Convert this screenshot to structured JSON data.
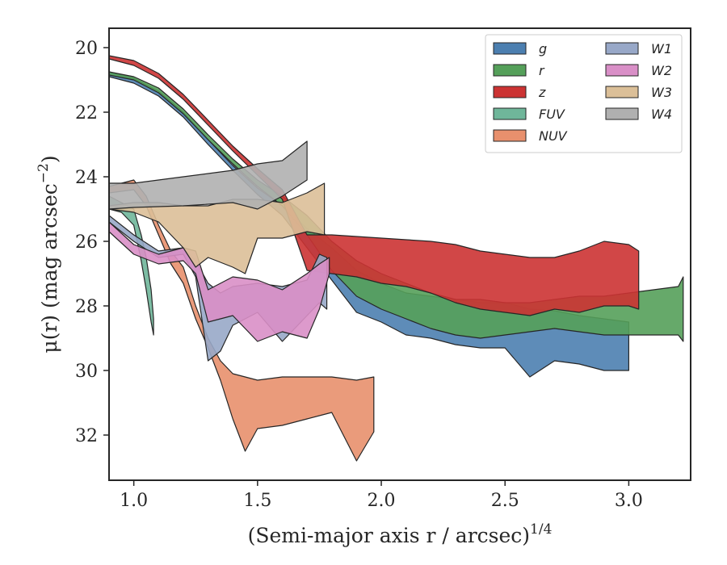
{
  "chart_data": {
    "type": "area",
    "xlabel": "(Semi-major axis r / arcsec)",
    "xlabel_exponent": "1/4",
    "ylabel": "μ(r) (mag arcsec",
    "ylabel_exponent": "−2",
    "ylabel_close": ")",
    "xlim": [
      0.9,
      3.25
    ],
    "ylim": [
      33.4,
      19.4
    ],
    "y_inverted": true,
    "x_ticks": [
      1.0,
      1.5,
      2.0,
      2.5,
      3.0
    ],
    "x_tick_labels": [
      "1.0",
      "1.5",
      "2.0",
      "2.5",
      "3.0"
    ],
    "y_ticks": [
      20,
      22,
      24,
      26,
      28,
      30,
      32
    ],
    "y_tick_labels": [
      "20",
      "22",
      "24",
      "26",
      "28",
      "30",
      "32"
    ],
    "grid": false,
    "legend_position": "top-right",
    "legend_columns": 2,
    "series": [
      {
        "name": "g",
        "legend_label": "g",
        "color": "#4c7fb0",
        "upper": [
          [
            0.9,
            20.75
          ],
          [
            1.0,
            20.95
          ],
          [
            1.1,
            21.35
          ],
          [
            1.2,
            22.0
          ],
          [
            1.3,
            22.85
          ],
          [
            1.4,
            23.65
          ],
          [
            1.5,
            24.35
          ],
          [
            1.6,
            24.9
          ],
          [
            1.7,
            25.6
          ],
          [
            1.8,
            26.2
          ],
          [
            1.9,
            26.9
          ],
          [
            2.0,
            27.3
          ],
          [
            2.1,
            27.6
          ],
          [
            2.2,
            27.7
          ],
          [
            2.3,
            27.8
          ],
          [
            2.4,
            27.9
          ],
          [
            2.5,
            27.9
          ],
          [
            2.6,
            28.1
          ],
          [
            2.7,
            28.15
          ],
          [
            2.8,
            28.3
          ],
          [
            2.9,
            28.4
          ],
          [
            3.0,
            28.5
          ]
        ],
        "lower": [
          [
            0.9,
            20.9
          ],
          [
            1.0,
            21.1
          ],
          [
            1.1,
            21.5
          ],
          [
            1.2,
            22.15
          ],
          [
            1.3,
            23.0
          ],
          [
            1.4,
            23.8
          ],
          [
            1.5,
            24.55
          ],
          [
            1.6,
            25.2
          ],
          [
            1.7,
            26.2
          ],
          [
            1.8,
            27.2
          ],
          [
            1.9,
            28.2
          ],
          [
            2.0,
            28.5
          ],
          [
            2.1,
            28.9
          ],
          [
            2.2,
            29.0
          ],
          [
            2.3,
            29.2
          ],
          [
            2.4,
            29.3
          ],
          [
            2.5,
            29.3
          ],
          [
            2.6,
            30.2
          ],
          [
            2.7,
            29.7
          ],
          [
            2.8,
            29.8
          ],
          [
            2.9,
            30.0
          ],
          [
            3.0,
            30.0
          ]
        ]
      },
      {
        "name": "r",
        "legend_label": "r",
        "color": "#55a05a",
        "upper": [
          [
            0.9,
            20.75
          ],
          [
            1.0,
            20.9
          ],
          [
            1.1,
            21.25
          ],
          [
            1.2,
            21.9
          ],
          [
            1.3,
            22.7
          ],
          [
            1.4,
            23.45
          ],
          [
            1.5,
            24.1
          ],
          [
            1.6,
            24.6
          ],
          [
            1.7,
            25.2
          ],
          [
            1.8,
            26.0
          ],
          [
            1.9,
            26.6
          ],
          [
            2.0,
            27.0
          ],
          [
            2.1,
            27.3
          ],
          [
            2.2,
            27.6
          ],
          [
            2.3,
            27.8
          ],
          [
            2.4,
            27.8
          ],
          [
            2.5,
            27.9
          ],
          [
            2.6,
            27.9
          ],
          [
            2.7,
            27.8
          ],
          [
            2.8,
            27.7
          ],
          [
            2.9,
            27.7
          ],
          [
            3.0,
            27.6
          ],
          [
            3.1,
            27.5
          ],
          [
            3.2,
            27.4
          ],
          [
            3.22,
            27.1
          ]
        ],
        "lower": [
          [
            0.9,
            20.85
          ],
          [
            1.0,
            21.0
          ],
          [
            1.1,
            21.4
          ],
          [
            1.2,
            22.05
          ],
          [
            1.3,
            22.85
          ],
          [
            1.4,
            23.6
          ],
          [
            1.5,
            24.3
          ],
          [
            1.6,
            24.9
          ],
          [
            1.7,
            25.8
          ],
          [
            1.8,
            26.9
          ],
          [
            1.9,
            27.7
          ],
          [
            2.0,
            28.1
          ],
          [
            2.1,
            28.4
          ],
          [
            2.2,
            28.7
          ],
          [
            2.3,
            28.9
          ],
          [
            2.4,
            29.0
          ],
          [
            2.5,
            28.9
          ],
          [
            2.6,
            28.8
          ],
          [
            2.7,
            28.7
          ],
          [
            2.8,
            28.8
          ],
          [
            2.9,
            28.9
          ],
          [
            3.0,
            28.9
          ],
          [
            3.1,
            28.9
          ],
          [
            3.2,
            28.9
          ],
          [
            3.22,
            29.1
          ]
        ]
      },
      {
        "name": "z",
        "legend_label": "z",
        "color": "#cc3333",
        "upper": [
          [
            0.9,
            20.25
          ],
          [
            1.0,
            20.4
          ],
          [
            1.1,
            20.8
          ],
          [
            1.2,
            21.45
          ],
          [
            1.3,
            22.25
          ],
          [
            1.4,
            23.05
          ],
          [
            1.5,
            23.75
          ],
          [
            1.6,
            24.4
          ],
          [
            1.7,
            25.8
          ],
          [
            1.8,
            25.8
          ],
          [
            1.9,
            25.85
          ],
          [
            2.0,
            25.9
          ],
          [
            2.1,
            25.95
          ],
          [
            2.2,
            26.0
          ],
          [
            2.3,
            26.1
          ],
          [
            2.4,
            26.3
          ],
          [
            2.5,
            26.4
          ],
          [
            2.6,
            26.5
          ],
          [
            2.7,
            26.5
          ],
          [
            2.8,
            26.3
          ],
          [
            2.9,
            26.0
          ],
          [
            3.0,
            26.1
          ],
          [
            3.04,
            26.3
          ]
        ],
        "lower": [
          [
            0.9,
            20.35
          ],
          [
            1.0,
            20.55
          ],
          [
            1.1,
            20.95
          ],
          [
            1.2,
            21.6
          ],
          [
            1.3,
            22.4
          ],
          [
            1.4,
            23.2
          ],
          [
            1.5,
            23.95
          ],
          [
            1.6,
            24.7
          ],
          [
            1.7,
            26.9
          ],
          [
            1.8,
            27.0
          ],
          [
            1.9,
            27.1
          ],
          [
            2.0,
            27.3
          ],
          [
            2.1,
            27.4
          ],
          [
            2.2,
            27.6
          ],
          [
            2.3,
            27.9
          ],
          [
            2.4,
            28.1
          ],
          [
            2.5,
            28.2
          ],
          [
            2.6,
            28.3
          ],
          [
            2.7,
            28.1
          ],
          [
            2.8,
            28.2
          ],
          [
            2.9,
            28.0
          ],
          [
            3.0,
            28.0
          ],
          [
            3.04,
            28.1
          ]
        ]
      },
      {
        "name": "FUV",
        "legend_label": "FUV",
        "color": "#6fb69a",
        "upper": [
          [
            0.9,
            24.6
          ],
          [
            0.95,
            24.8
          ],
          [
            1.0,
            25.0
          ],
          [
            1.03,
            25.8
          ],
          [
            1.05,
            26.5
          ],
          [
            1.07,
            27.5
          ],
          [
            1.08,
            28.4
          ]
        ],
        "lower": [
          [
            0.9,
            25.0
          ],
          [
            0.95,
            25.1
          ],
          [
            1.0,
            25.5
          ],
          [
            1.03,
            26.6
          ],
          [
            1.05,
            27.5
          ],
          [
            1.07,
            28.5
          ],
          [
            1.08,
            28.9
          ]
        ]
      },
      {
        "name": "NUV",
        "legend_label": "NUV",
        "color": "#e8906d",
        "upper": [
          [
            0.9,
            24.3
          ],
          [
            1.0,
            24.1
          ],
          [
            1.05,
            24.6
          ],
          [
            1.1,
            25.5
          ],
          [
            1.15,
            26.3
          ],
          [
            1.2,
            26.8
          ],
          [
            1.25,
            28.0
          ],
          [
            1.3,
            29.0
          ],
          [
            1.35,
            29.7
          ],
          [
            1.4,
            30.1
          ],
          [
            1.5,
            30.3
          ],
          [
            1.6,
            30.2
          ],
          [
            1.7,
            30.2
          ],
          [
            1.8,
            30.2
          ],
          [
            1.9,
            30.3
          ],
          [
            1.97,
            30.2
          ]
        ],
        "lower": [
          [
            0.9,
            24.5
          ],
          [
            1.0,
            24.4
          ],
          [
            1.05,
            24.9
          ],
          [
            1.1,
            25.8
          ],
          [
            1.15,
            26.7
          ],
          [
            1.2,
            27.3
          ],
          [
            1.25,
            28.4
          ],
          [
            1.3,
            29.3
          ],
          [
            1.35,
            30.3
          ],
          [
            1.4,
            31.5
          ],
          [
            1.45,
            32.5
          ],
          [
            1.5,
            31.8
          ],
          [
            1.6,
            31.7
          ],
          [
            1.7,
            31.5
          ],
          [
            1.8,
            31.3
          ],
          [
            1.9,
            32.8
          ],
          [
            1.97,
            31.9
          ]
        ]
      },
      {
        "name": "W1",
        "legend_label": "W1",
        "color": "#98a8c8",
        "upper": [
          [
            0.9,
            25.2
          ],
          [
            1.0,
            25.8
          ],
          [
            1.1,
            26.3
          ],
          [
            1.2,
            26.2
          ],
          [
            1.25,
            26.6
          ],
          [
            1.3,
            27.3
          ],
          [
            1.35,
            27.6
          ],
          [
            1.4,
            27.4
          ],
          [
            1.5,
            27.3
          ],
          [
            1.6,
            27.4
          ],
          [
            1.7,
            27.2
          ],
          [
            1.75,
            26.4
          ],
          [
            1.78,
            26.5
          ]
        ],
        "lower": [
          [
            0.9,
            25.4
          ],
          [
            1.0,
            26.0
          ],
          [
            1.1,
            26.5
          ],
          [
            1.2,
            26.4
          ],
          [
            1.25,
            27.1
          ],
          [
            1.3,
            29.7
          ],
          [
            1.35,
            29.4
          ],
          [
            1.4,
            28.6
          ],
          [
            1.5,
            28.2
          ],
          [
            1.6,
            29.1
          ],
          [
            1.7,
            28.3
          ],
          [
            1.75,
            27.9
          ],
          [
            1.78,
            28.1
          ]
        ]
      },
      {
        "name": "W2",
        "legend_label": "W2",
        "color": "#d98fc7",
        "upper": [
          [
            0.9,
            25.4
          ],
          [
            1.0,
            26.1
          ],
          [
            1.1,
            26.4
          ],
          [
            1.2,
            26.2
          ],
          [
            1.25,
            26.3
          ],
          [
            1.3,
            27.5
          ],
          [
            1.4,
            27.1
          ],
          [
            1.5,
            27.2
          ],
          [
            1.6,
            27.5
          ],
          [
            1.7,
            27.0
          ],
          [
            1.75,
            26.7
          ],
          [
            1.79,
            26.5
          ]
        ],
        "lower": [
          [
            0.9,
            25.7
          ],
          [
            1.0,
            26.4
          ],
          [
            1.1,
            26.7
          ],
          [
            1.2,
            26.6
          ],
          [
            1.25,
            27.0
          ],
          [
            1.3,
            28.5
          ],
          [
            1.4,
            28.3
          ],
          [
            1.5,
            29.1
          ],
          [
            1.6,
            28.8
          ],
          [
            1.7,
            29.0
          ],
          [
            1.75,
            28.1
          ],
          [
            1.79,
            27.0
          ]
        ]
      },
      {
        "name": "W3",
        "legend_label": "W3",
        "color": "#dbbf98",
        "upper": [
          [
            0.9,
            24.9
          ],
          [
            1.0,
            24.8
          ],
          [
            1.1,
            24.8
          ],
          [
            1.2,
            24.9
          ],
          [
            1.3,
            24.9
          ],
          [
            1.4,
            24.7
          ],
          [
            1.5,
            24.7
          ],
          [
            1.6,
            24.8
          ],
          [
            1.7,
            24.5
          ],
          [
            1.77,
            24.2
          ]
        ],
        "lower": [
          [
            0.9,
            25.0
          ],
          [
            1.0,
            25.1
          ],
          [
            1.1,
            25.4
          ],
          [
            1.2,
            26.2
          ],
          [
            1.25,
            26.8
          ],
          [
            1.3,
            26.5
          ],
          [
            1.4,
            26.8
          ],
          [
            1.45,
            27.0
          ],
          [
            1.5,
            25.9
          ],
          [
            1.6,
            25.9
          ],
          [
            1.7,
            25.7
          ],
          [
            1.77,
            25.8
          ]
        ]
      },
      {
        "name": "W4",
        "legend_label": "W4",
        "color": "#b0b0b0",
        "upper": [
          [
            0.9,
            24.2
          ],
          [
            1.0,
            24.2
          ],
          [
            1.2,
            24.0
          ],
          [
            1.4,
            23.8
          ],
          [
            1.5,
            23.6
          ],
          [
            1.6,
            23.5
          ],
          [
            1.7,
            22.9
          ]
        ],
        "lower": [
          [
            0.9,
            25.0
          ],
          [
            1.0,
            24.95
          ],
          [
            1.2,
            24.9
          ],
          [
            1.4,
            24.8
          ],
          [
            1.5,
            25.0
          ],
          [
            1.6,
            24.6
          ],
          [
            1.7,
            24.1
          ]
        ]
      }
    ]
  }
}
